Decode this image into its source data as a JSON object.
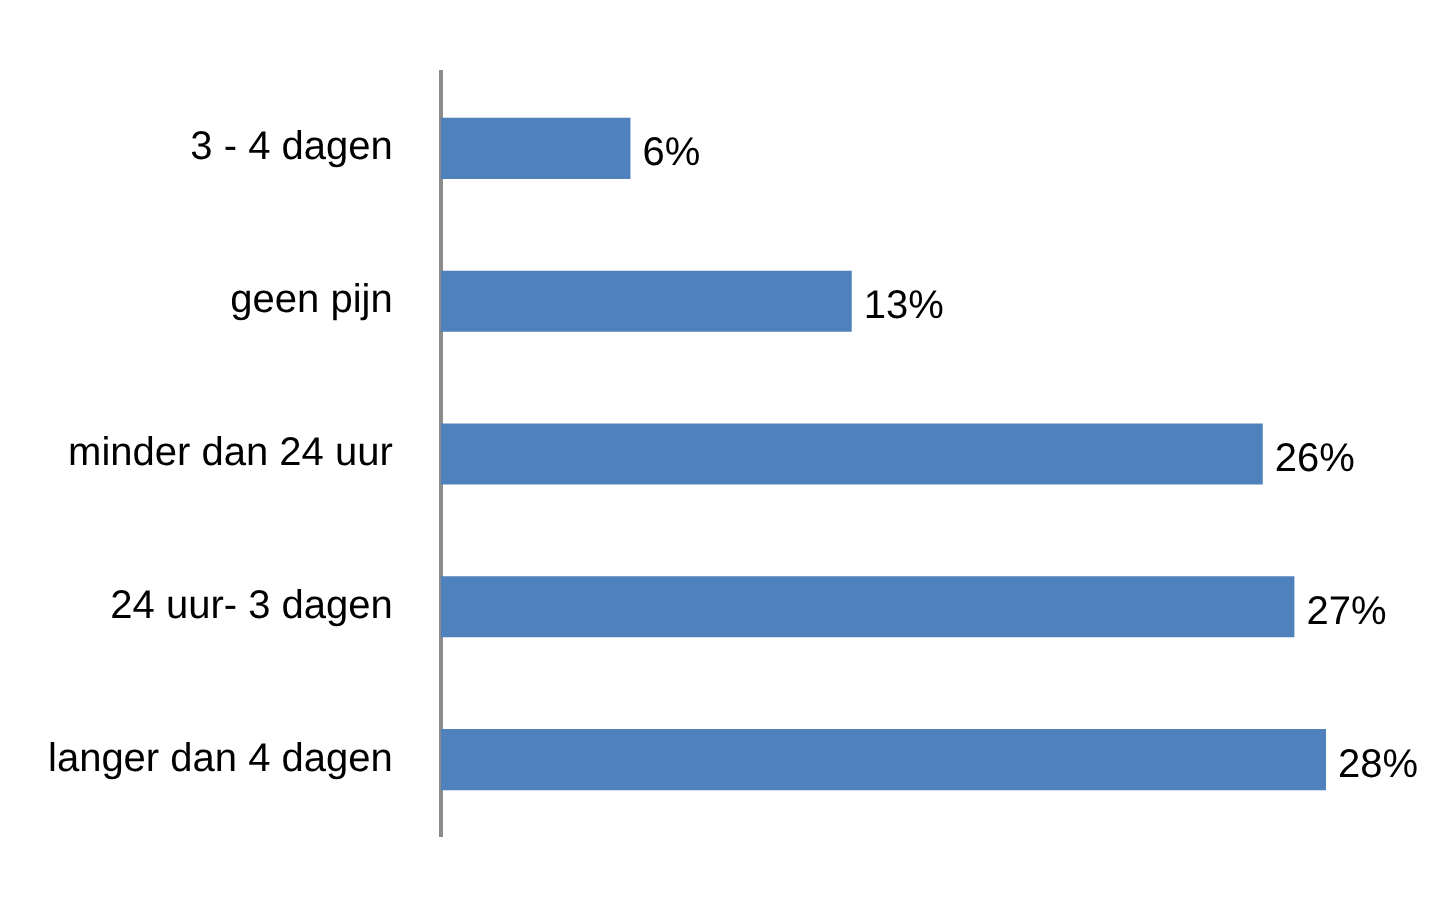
{
  "chart_data": {
    "type": "bar",
    "orientation": "horizontal",
    "categories": [
      "3 - 4 dagen",
      "geen pijn",
      "minder dan 24 uur",
      "24 uur- 3 dagen",
      "langer dan 4 dagen"
    ],
    "values": [
      6,
      13,
      26,
      27,
      28
    ],
    "color": "#4f81bd",
    "value_labels": [
      "6%",
      "13%",
      "26%",
      "27%",
      "28%"
    ],
    "legend": false
  }
}
